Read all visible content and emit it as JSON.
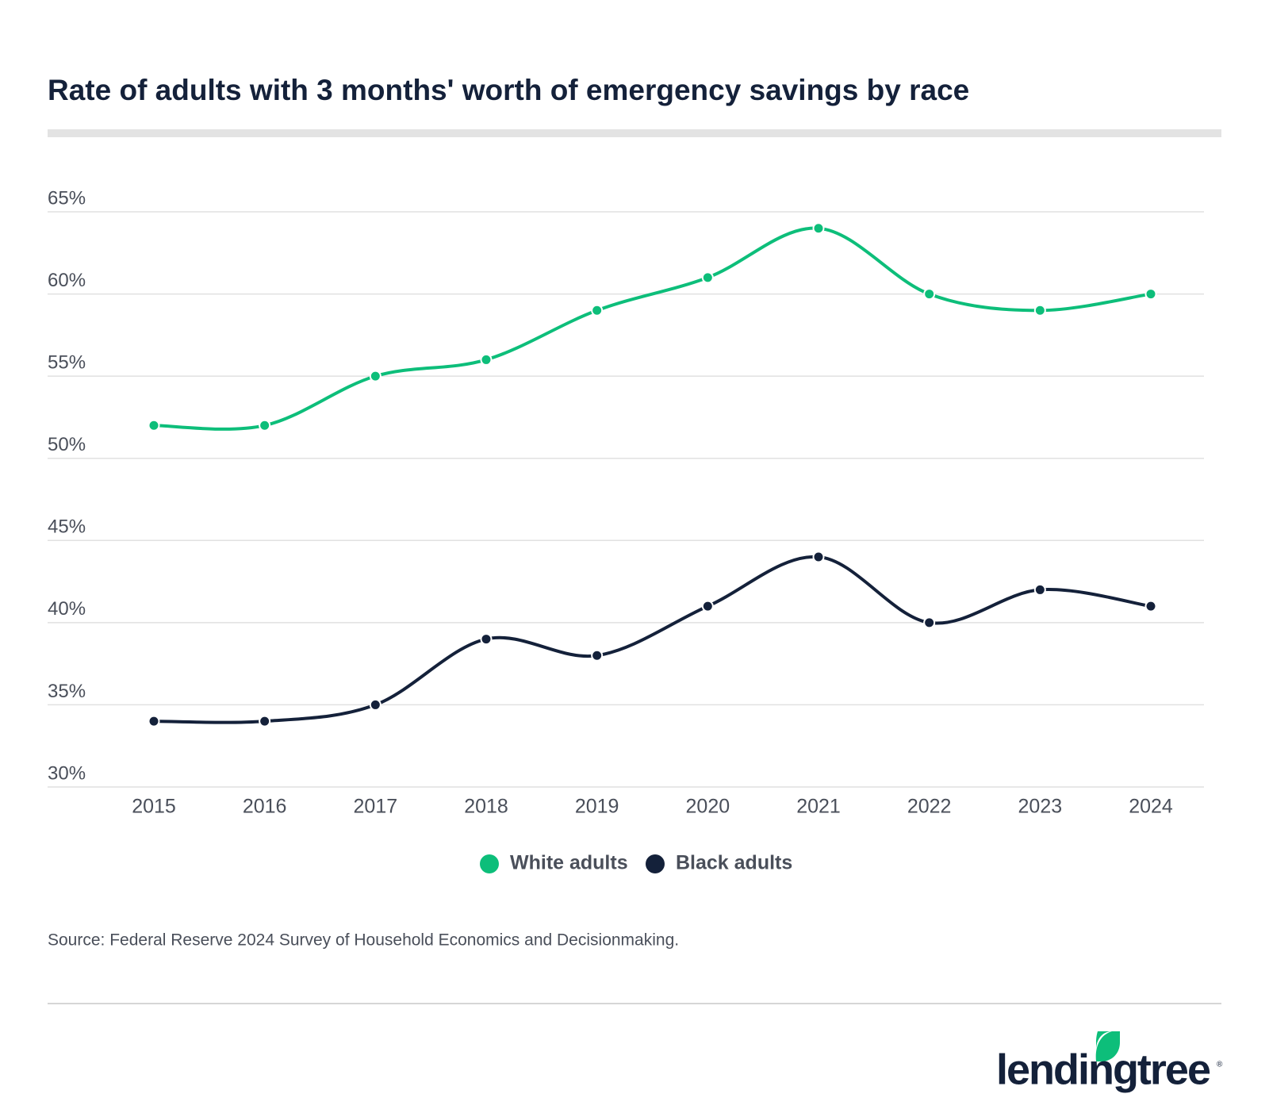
{
  "chart_data": {
    "type": "line",
    "title": "Rate of adults with 3 months' worth of emergency savings by race",
    "categories": [
      "2015",
      "2016",
      "2017",
      "2018",
      "2019",
      "2020",
      "2021",
      "2022",
      "2023",
      "2024"
    ],
    "series": [
      {
        "name": "White adults",
        "color": "#0dbe7a",
        "values": [
          52,
          52,
          55,
          56,
          59,
          61,
          64,
          60,
          59,
          60
        ]
      },
      {
        "name": "Black adults",
        "color": "#14213a",
        "values": [
          34,
          34,
          35,
          39,
          38,
          41,
          44,
          40,
          42,
          41
        ]
      }
    ],
    "ylim": [
      30,
      65
    ],
    "yticks": [
      {
        "value": 30,
        "label": "30%"
      },
      {
        "value": 35,
        "label": "35%"
      },
      {
        "value": 40,
        "label": "40%"
      },
      {
        "value": 45,
        "label": "45%"
      },
      {
        "value": 50,
        "label": "50%"
      },
      {
        "value": 55,
        "label": "55%"
      },
      {
        "value": 60,
        "label": "60%"
      },
      {
        "value": 65,
        "label": "65%"
      }
    ],
    "grid": true,
    "source": "Source: Federal Reserve 2024 Survey of Household Economics and Decisionmaking."
  },
  "logo": "lendingtree"
}
